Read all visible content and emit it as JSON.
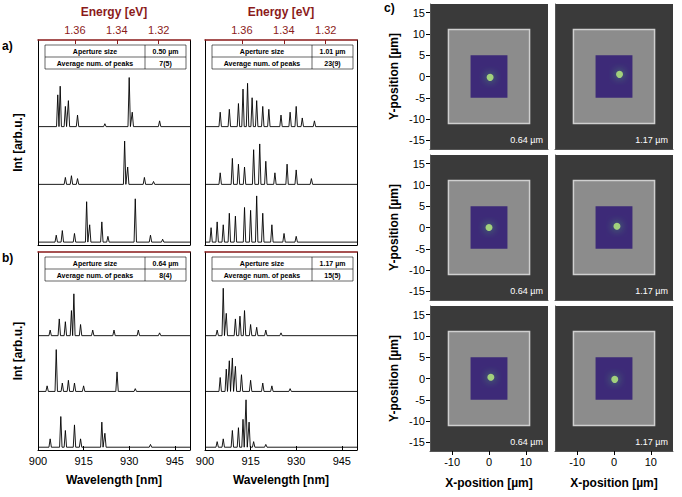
{
  "chart_data": [
    {
      "type": "line",
      "panel": "a)",
      "x2label": "Energy [eV]",
      "x2lim": [
        1.3776,
        1.30509
      ],
      "x2ticks": [
        1.36,
        1.34,
        1.32
      ],
      "ylabel": "Int [arb.u.]",
      "xlim": [
        900,
        950
      ],
      "ylim": [
        -0.05,
        3.5
      ],
      "inset": [
        [
          "Aperture size",
          "0.50 µm"
        ],
        [
          "Average num. of peaks",
          "7(5)"
        ]
      ],
      "series": [
        {
          "color": "#000000",
          "x": [
            900,
            906.1,
            906.5,
            906.9,
            907.3,
            907.7,
            908.6,
            909,
            909.4,
            909.6,
            910,
            910.4,
            912.6,
            913,
            913.4,
            921.6,
            922,
            922.4,
            929.6,
            930,
            930.4,
            930.6,
            931,
            931.4,
            939.6,
            940,
            940.4,
            950
          ],
          "values": [
            2,
            2,
            2.55,
            2,
            2.7,
            2,
            2,
            2.35,
            2,
            2,
            2.45,
            2,
            2,
            2.2,
            2,
            2,
            2.05,
            2,
            2,
            2.85,
            2,
            2,
            2.25,
            2,
            2,
            2.1,
            2,
            2
          ]
        },
        {
          "color": "#000000",
          "x": [
            900,
            908.6,
            909,
            909.4,
            910.6,
            911,
            911.4,
            912.6,
            913,
            913.4,
            928.1,
            928.5,
            928.9,
            929.1,
            929.5,
            929.9,
            934.6,
            935,
            935.4,
            937.6,
            938,
            938.4,
            950
          ],
          "values": [
            1,
            1,
            1.12,
            1,
            1,
            1.15,
            1,
            1,
            1.1,
            1,
            1,
            1.75,
            1,
            1,
            1.3,
            1,
            1,
            1.12,
            1,
            1,
            1.05,
            1,
            1
          ]
        },
        {
          "color": "#000000",
          "x": [
            900,
            905.6,
            906,
            906.4,
            907.6,
            908,
            908.4,
            911.6,
            912,
            912.4,
            915.6,
            916,
            916.4,
            916.6,
            917,
            917.4,
            920.6,
            921,
            921.4,
            922.6,
            923,
            923.4,
            931.6,
            932,
            932.4,
            936.6,
            937,
            937.4,
            940.6,
            941,
            941.4,
            950
          ],
          "values": [
            0,
            0,
            0.12,
            0,
            0,
            0.2,
            0,
            0,
            0.15,
            0,
            0,
            0.7,
            0,
            0,
            0.3,
            0,
            0,
            0.35,
            0,
            0,
            0.1,
            0,
            0,
            0.75,
            0,
            0,
            0.12,
            0,
            0,
            0.05,
            0,
            0
          ]
        }
      ]
    },
    {
      "type": "line",
      "x2label": "Energy [eV]",
      "x2lim": [
        1.3776,
        1.30509
      ],
      "x2ticks": [
        1.36,
        1.34,
        1.32
      ],
      "xlim": [
        900,
        950
      ],
      "ylim": [
        -0.05,
        3.5
      ],
      "inset": [
        [
          "Aperture size",
          "1.01 µm"
        ],
        [
          "Average num. of peaks",
          "23(9)"
        ]
      ],
      "series": [
        {
          "color": "#000000",
          "x": [
            900,
            904.6,
            905,
            905.4,
            907.6,
            908,
            908.4,
            910.6,
            911,
            911.4,
            912.1,
            912.5,
            912.9,
            913.6,
            914,
            914.4,
            915.1,
            915.5,
            915.9,
            916.6,
            917,
            917.4,
            918.6,
            919,
            919.4,
            920.6,
            921,
            921.4,
            924.6,
            925,
            925.4,
            927.6,
            928,
            928.4,
            929.6,
            930,
            930.4,
            931.6,
            932,
            932.4,
            935.6,
            936,
            936.4,
            950
          ],
          "values": [
            2,
            2,
            2.25,
            2,
            2,
            2.3,
            2,
            2,
            2.4,
            2,
            2,
            2.65,
            2,
            2,
            2.75,
            2,
            2,
            2.5,
            2,
            2,
            2.45,
            2,
            2,
            2.35,
            2,
            2,
            2.3,
            2,
            2,
            2.2,
            2,
            2,
            2.25,
            2,
            2,
            2.35,
            2,
            2,
            2.15,
            2,
            2,
            2.1,
            2,
            2
          ]
        },
        {
          "color": "#000000",
          "x": [
            900,
            904.6,
            905,
            905.4,
            908.6,
            909,
            909.4,
            910.6,
            911,
            911.4,
            912.6,
            913,
            913.4,
            915.6,
            916,
            916.4,
            917.6,
            918,
            918.4,
            919.6,
            920,
            920.4,
            922.6,
            923,
            923.4,
            926.6,
            927,
            927.4,
            929.6,
            930,
            930.4,
            934.6,
            935,
            935.4,
            950
          ],
          "values": [
            1,
            1,
            1.2,
            1,
            1,
            1.45,
            1,
            1,
            1.35,
            1,
            1,
            1.3,
            1,
            1,
            1.6,
            1,
            1,
            1.7,
            1,
            1,
            1.4,
            1,
            1,
            1.2,
            1,
            1,
            1.35,
            1,
            1,
            1.25,
            1,
            1,
            1.1,
            1,
            1
          ]
        },
        {
          "color": "#000000",
          "x": [
            900,
            901.6,
            902,
            902.4,
            903.6,
            904,
            904.4,
            905.6,
            906,
            906.4,
            907.6,
            908,
            908.4,
            909.6,
            910,
            910.4,
            912.6,
            913,
            913.4,
            914.6,
            915,
            915.4,
            916.6,
            917,
            917.4,
            918.6,
            919,
            919.4,
            921.6,
            922,
            922.4,
            925.6,
            926,
            926.4,
            929.6,
            930,
            930.4,
            950
          ],
          "values": [
            0,
            0,
            0.25,
            0,
            0,
            0.35,
            0,
            0,
            0.3,
            0,
            0,
            0.5,
            0,
            0,
            0.45,
            0,
            0,
            0.6,
            0,
            0,
            0.55,
            0,
            0,
            0.8,
            0,
            0,
            0.5,
            0,
            0,
            0.3,
            0,
            0,
            0.15,
            0,
            0,
            0.1,
            0,
            0
          ]
        }
      ]
    },
    {
      "type": "line",
      "panel": "b)",
      "ylabel": "Int [arb.u.]",
      "xlabel": "Wavelength [nm]",
      "xlim": [
        900,
        950
      ],
      "xticks": [
        900,
        915,
        930,
        945
      ],
      "ylim": [
        -0.05,
        3.5
      ],
      "inset": [
        [
          "Aperture size",
          "0.64 µm"
        ],
        [
          "Average num. of peaks",
          "8(4)"
        ]
      ],
      "series": [
        {
          "color": "#000000",
          "x": [
            900,
            903.6,
            904,
            904.4,
            906.6,
            907,
            907.4,
            908.6,
            909,
            909.4,
            910.6,
            911,
            911.4,
            911.8,
            912.2,
            913.6,
            914,
            914.4,
            917.6,
            918,
            918.4,
            924.6,
            925,
            925.4,
            932.6,
            933,
            933.4,
            939.6,
            940,
            940.4,
            950
          ],
          "values": [
            2,
            2,
            2.1,
            2,
            2,
            2.3,
            2,
            2,
            2.25,
            2,
            2,
            2.45,
            2,
            2.75,
            2,
            2,
            2.2,
            2,
            2,
            2.1,
            2,
            2,
            2.1,
            2,
            2,
            2.1,
            2,
            2,
            2.05,
            2,
            2
          ]
        },
        {
          "color": "#000000",
          "x": [
            900,
            902.6,
            903,
            903.4,
            905.6,
            906,
            906.4,
            907.6,
            908,
            908.4,
            909.6,
            910,
            910.4,
            911.6,
            912,
            912.4,
            914.6,
            915,
            915.4,
            925.6,
            926,
            926.4,
            931.6,
            932,
            932.4,
            950
          ],
          "values": [
            1,
            1,
            1.1,
            1,
            1,
            1.75,
            1,
            1,
            1.15,
            1,
            1,
            1.2,
            1,
            1,
            1.15,
            1,
            1,
            1.1,
            1,
            1,
            1.35,
            1,
            1,
            1.05,
            1,
            1
          ]
        },
        {
          "color": "#000000",
          "x": [
            900,
            903.6,
            904,
            904.4,
            907.1,
            907.5,
            907.9,
            908.6,
            909,
            909.4,
            911.6,
            912,
            912.4,
            913.6,
            914,
            914.4,
            920.6,
            921,
            921.4,
            921.6,
            922,
            922.4,
            936.6,
            937,
            937.4,
            950
          ],
          "values": [
            0,
            0,
            0.15,
            0,
            0,
            0.55,
            0,
            0,
            0.3,
            0,
            0,
            0.4,
            0,
            0,
            0.15,
            0,
            0,
            0.45,
            0,
            0,
            0.25,
            0,
            0,
            0.05,
            0,
            0
          ]
        }
      ]
    },
    {
      "type": "line",
      "xlabel": "Wavelength [nm]",
      "xlim": [
        900,
        950
      ],
      "xticks": [
        900,
        915,
        930,
        945
      ],
      "ylim": [
        -0.05,
        3.5
      ],
      "inset": [
        [
          "Aperture size",
          "1.17 µm"
        ],
        [
          "Average num. of peaks",
          "15(5)"
        ]
      ],
      "series": [
        {
          "color": "#000000",
          "x": [
            900,
            903.6,
            904,
            904.4,
            905.6,
            906,
            906.4,
            906.6,
            907,
            907.4,
            909.6,
            910,
            910.4,
            911.1,
            911.5,
            911.9,
            912.6,
            913,
            913.4,
            914.6,
            915,
            915.4,
            916.6,
            917,
            917.4,
            919.6,
            920,
            920.4,
            924.6,
            925,
            925.4,
            950
          ],
          "values": [
            2,
            2,
            2.1,
            2,
            2,
            2.85,
            2,
            2,
            2.4,
            2,
            2,
            2.3,
            2,
            2,
            2.35,
            2,
            2,
            2.45,
            2,
            2,
            2.2,
            2,
            2,
            2.15,
            2,
            2,
            2.1,
            2,
            2,
            2.05,
            2,
            2
          ]
        },
        {
          "color": "#000000",
          "x": [
            900,
            904.6,
            905,
            905.4,
            906.6,
            907,
            907.4,
            907.6,
            908,
            908.4,
            908.6,
            909,
            909.4,
            909.6,
            910,
            910.4,
            911.6,
            912,
            912.4,
            914.6,
            915,
            915.4,
            918.6,
            919,
            919.4,
            921.6,
            922,
            922.4,
            927.6,
            928,
            928.4,
            950
          ],
          "values": [
            1,
            1,
            1.25,
            1,
            1,
            1.4,
            1,
            1,
            1.55,
            1,
            1,
            1.6,
            1,
            1,
            1.45,
            1,
            1,
            1.3,
            1,
            1,
            1.2,
            1,
            1,
            1.15,
            1,
            1,
            1.1,
            1,
            1,
            1.05,
            1,
            1
          ]
        },
        {
          "color": "#000000",
          "x": [
            900,
            903.6,
            904,
            904.4,
            905.6,
            906,
            906.4,
            908.6,
            909,
            909.4,
            910.6,
            911,
            911.4,
            912.1,
            912.5,
            912.9,
            913.1,
            913.5,
            913.9,
            914.1,
            914.5,
            914.9,
            915.6,
            916,
            916.4,
            919.6,
            920,
            920.4,
            950
          ],
          "values": [
            0,
            0,
            0.1,
            0,
            0,
            0.15,
            0,
            0,
            0.3,
            0,
            0,
            0.35,
            0,
            0,
            0.5,
            0,
            0,
            0.85,
            0,
            0,
            0.45,
            0,
            0,
            0.1,
            0,
            0,
            0.05,
            0,
            0
          ]
        }
      ]
    },
    {
      "type": "image",
      "panel": "c)",
      "label": "0.64 µm",
      "xlim": [
        -16,
        16
      ],
      "ylim": [
        -17,
        17
      ],
      "yticks": [
        -15,
        -10,
        -5,
        0,
        5,
        10,
        15
      ],
      "ylabel": "Y-position [µm]",
      "mesa": [
        -11,
        11
      ],
      "map": [
        -5,
        5
      ],
      "spot": {
        "x": [
          0.3
        ],
        "values": [
          -0.2
        ]
      }
    },
    {
      "type": "image",
      "label": "1.17 µm",
      "xlim": [
        -16,
        16
      ],
      "ylim": [
        -17,
        17
      ],
      "mesa": [
        -11,
        11
      ],
      "map": [
        -5,
        5
      ],
      "spot": {
        "x": [
          1.5
        ],
        "values": [
          0.5
        ]
      }
    },
    {
      "type": "image",
      "label": "0.64 µm",
      "xlim": [
        -16,
        16
      ],
      "ylim": [
        -17,
        17
      ],
      "yticks": [
        -15,
        -10,
        -5,
        0,
        5,
        10,
        15
      ],
      "ylabel": "Y-position [µm]",
      "mesa": [
        -11,
        11
      ],
      "map": [
        -5,
        5
      ],
      "spot": {
        "x": [
          0
        ],
        "values": [
          0
        ]
      }
    },
    {
      "type": "image",
      "label": "1.17 µm",
      "xlim": [
        -16,
        16
      ],
      "ylim": [
        -17,
        17
      ],
      "mesa": [
        -11,
        11
      ],
      "map": [
        -5,
        5
      ],
      "spot": {
        "x": [
          0.8
        ],
        "values": [
          0.3
        ]
      }
    },
    {
      "type": "image",
      "label": "0.64 µm",
      "xlim": [
        -16,
        16
      ],
      "ylim": [
        -17,
        17
      ],
      "xticks": [
        -10,
        0,
        10
      ],
      "xlabel": "X-position [µm]",
      "yticks": [
        -15,
        -10,
        -5,
        0,
        5,
        10,
        15
      ],
      "ylabel": "Y-position [µm]",
      "mesa": [
        -11,
        11
      ],
      "map": [
        -5,
        5
      ],
      "spot": {
        "x": [
          0.5
        ],
        "values": [
          0.3
        ]
      }
    },
    {
      "type": "image",
      "label": "1.17 µm",
      "xlim": [
        -16,
        16
      ],
      "ylim": [
        -17,
        17
      ],
      "xticks": [
        -10,
        0,
        10
      ],
      "xlabel": "X-position [µm]",
      "mesa": [
        -11,
        11
      ],
      "map": [
        -5,
        5
      ],
      "spot": {
        "x": [
          0.2
        ],
        "values": [
          -0.2
        ]
      }
    }
  ]
}
